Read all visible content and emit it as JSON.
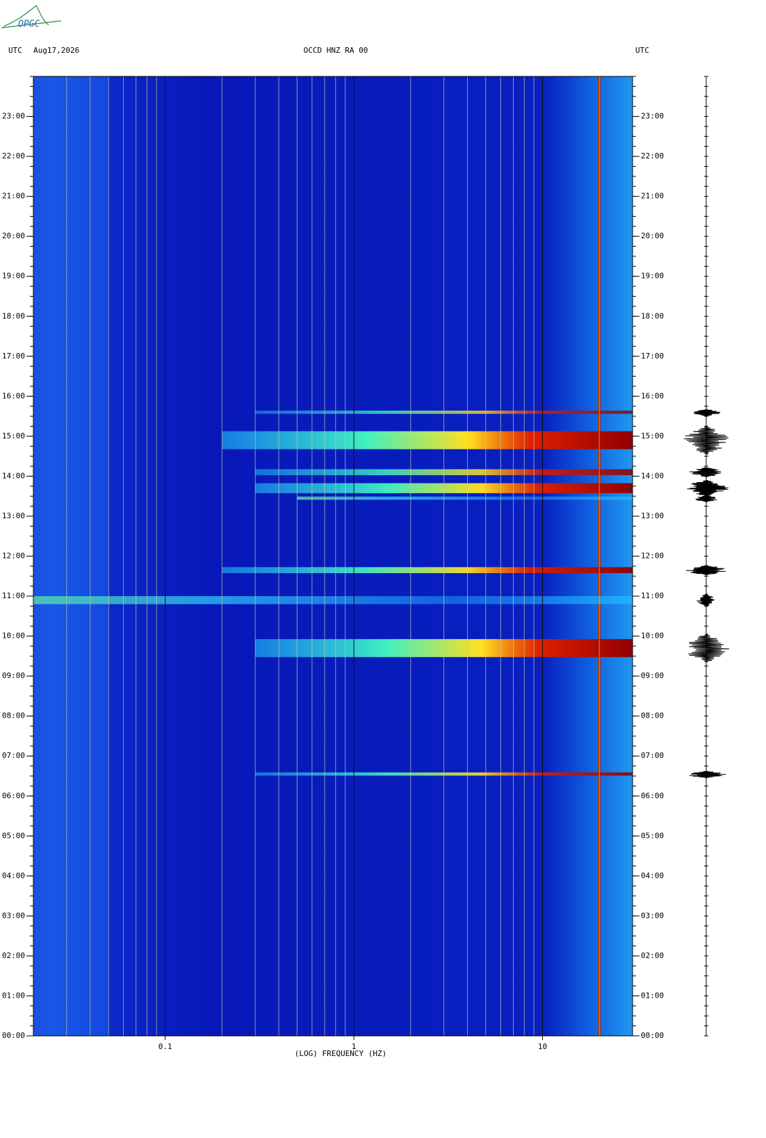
{
  "chart_data": {
    "type": "spectrogram",
    "logo": "OPGC",
    "header_left_zone": "UTC",
    "date": "Aug17,2026",
    "title": "OCCD HNZ RA 00",
    "header_right_zone": "UTC",
    "xlabel": "(LOG) FREQUENCY (HZ)",
    "xlim": [
      0.02,
      30
    ],
    "xscale": "log",
    "xticks": [
      0.1,
      1,
      10
    ],
    "xgrid": [
      0.03,
      0.04,
      0.05,
      0.06,
      0.07,
      0.08,
      0.09,
      0.2,
      0.3,
      0.4,
      0.5,
      0.6,
      0.7,
      0.8,
      0.9,
      2,
      3,
      4,
      5,
      6,
      7,
      8,
      9,
      20
    ],
    "ylim": [
      0,
      24
    ],
    "yticks": [
      {
        "value": 0,
        "label": "00:00"
      },
      {
        "value": 1,
        "label": "01:00"
      },
      {
        "value": 2,
        "label": "02:00"
      },
      {
        "value": 3,
        "label": "03:00"
      },
      {
        "value": 4,
        "label": "04:00"
      },
      {
        "value": 5,
        "label": "05:00"
      },
      {
        "value": 6,
        "label": "06:00"
      },
      {
        "value": 7,
        "label": "07:00"
      },
      {
        "value": 8,
        "label": "08:00"
      },
      {
        "value": 9,
        "label": "09:00"
      },
      {
        "value": 10,
        "label": "10:00"
      },
      {
        "value": 11,
        "label": "11:00"
      },
      {
        "value": 12,
        "label": "12:00"
      },
      {
        "value": 13,
        "label": "13:00"
      },
      {
        "value": 14,
        "label": "14:00"
      },
      {
        "value": 15,
        "label": "15:00"
      },
      {
        "value": 16,
        "label": "16:00"
      },
      {
        "value": 17,
        "label": "17:00"
      },
      {
        "value": 18,
        "label": "18:00"
      },
      {
        "value": 19,
        "label": "19:00"
      },
      {
        "value": 20,
        "label": "20:00"
      },
      {
        "value": 21,
        "label": "21:00"
      },
      {
        "value": 22,
        "label": "22:00"
      },
      {
        "value": 23,
        "label": "23:00"
      }
    ],
    "events": [
      {
        "hour": 6.55,
        "width": 0.08,
        "fmin": 0.3,
        "strength": 0.8
      },
      {
        "hour": 9.7,
        "width": 0.45,
        "fmin": 0.3,
        "strength": 1
      },
      {
        "hour": 10.9,
        "width": 0.2,
        "fmin": 0.02,
        "strength": 0.4
      },
      {
        "hour": 11.65,
        "width": 0.15,
        "fmin": 0.2,
        "strength": 0.9
      },
      {
        "hour": 13.45,
        "width": 0.08,
        "fmin": 0.5,
        "strength": 0.5
      },
      {
        "hour": 13.7,
        "width": 0.25,
        "fmin": 0.3,
        "strength": 0.95
      },
      {
        "hour": 14.1,
        "width": 0.15,
        "fmin": 0.3,
        "strength": 0.7
      },
      {
        "hour": 14.9,
        "width": 0.45,
        "fmin": 0.2,
        "strength": 1
      },
      {
        "hour": 15.6,
        "width": 0.08,
        "fmin": 0.3,
        "strength": 0.6
      }
    ]
  }
}
